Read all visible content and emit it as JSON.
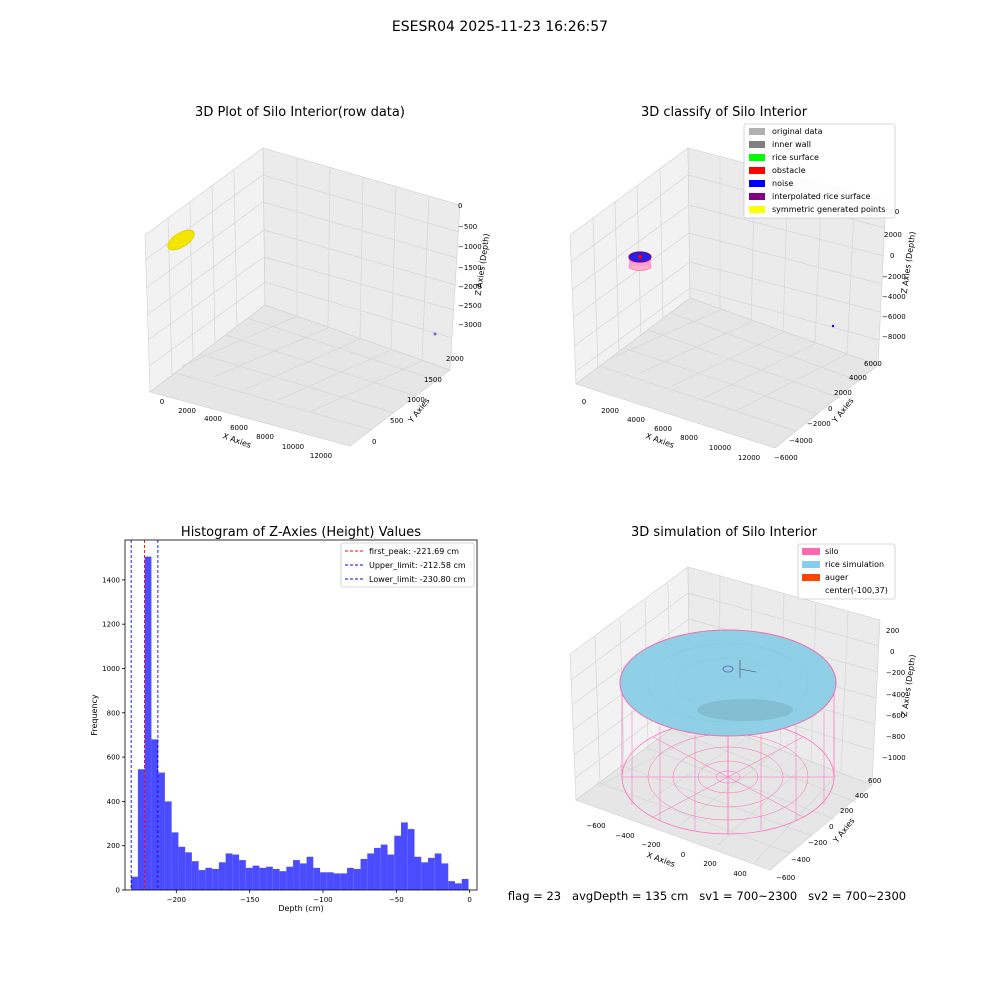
{
  "figure": {
    "suptitle": "ESESR04 2025-11-23 16:26:57",
    "footer": "flag = 23   avgDepth = 135 cm   sv1 = 700~2300   sv2 = 700~2300"
  },
  "colors": {
    "histogram_bar": "#4b4bff",
    "first_peak": "#ff0000",
    "limits": "#0000ff",
    "silo": "#ff69b4",
    "rice": "#87ceeb",
    "auger": "#ff4500",
    "pane": "#f2f2f2",
    "grid": "#d9d9d9",
    "raw_points": "#f2e600"
  },
  "panels": {
    "raw": {
      "title": "3D Plot of Silo Interior(row data)",
      "xlabel": "X Axies",
      "ylabel": "Y Axies",
      "zlabel": "Z Axies (Depth)",
      "xticks": [
        "0",
        "2000",
        "4000",
        "6000",
        "8000",
        "10000",
        "12000"
      ],
      "yticks": [
        "0",
        "500",
        "1000",
        "1500",
        "2000"
      ],
      "zticks": [
        "0",
        "−500",
        "−1000",
        "−1500",
        "−2000",
        "−2500",
        "−3000"
      ]
    },
    "classify": {
      "title": "3D classify of Silo Interior",
      "xlabel": "X Axies",
      "ylabel": "Y Axies",
      "zlabel": "Z Axies (Depth)",
      "xticks": [
        "0",
        "2000",
        "4000",
        "6000",
        "8000",
        "10000",
        "12000"
      ],
      "yticks": [
        "−6000",
        "−4000",
        "−2000",
        "0",
        "2000",
        "4000",
        "6000"
      ],
      "zticks": [
        "2000",
        "0",
        "−2000",
        "−4000",
        "−6000",
        "−8000"
      ],
      "ztick_partial": "000",
      "legend": [
        {
          "label": "original data",
          "color": "#b0b0b0"
        },
        {
          "label": "inner wall",
          "color": "#808080"
        },
        {
          "label": "rice surface",
          "color": "#00ff00"
        },
        {
          "label": "obstacle",
          "color": "#ff0000"
        },
        {
          "label": "noise",
          "color": "#0000ff"
        },
        {
          "label": "interpolated rice surface",
          "color": "#800080"
        },
        {
          "label": "symmetric generated points",
          "color": "#ffff00"
        }
      ]
    },
    "simulation": {
      "title": "3D simulation of Silo Interior",
      "xlabel": "X Axies",
      "ylabel": "Y Axies",
      "zlabel": "Z Axies (Depth)",
      "xticks": [
        "−600",
        "−400",
        "−200",
        "0",
        "200",
        "400"
      ],
      "yticks": [
        "−600",
        "−400",
        "−200",
        "0",
        "200",
        "400",
        "600"
      ],
      "zticks": [
        "200",
        "0",
        "−200",
        "−400",
        "−600",
        "−800",
        "−1000"
      ],
      "legend": [
        {
          "label": "silo",
          "color": "#ff69b4"
        },
        {
          "label": "rice simulation",
          "color": "#87ceeb"
        },
        {
          "label": "auger",
          "color": "#ff4500"
        },
        {
          "label": "center(-100,37)",
          "color": ""
        }
      ]
    }
  },
  "chart_data": {
    "type": "bar",
    "title": "Histogram of Z-Axies (Height) Values",
    "xlabel": "Depth (cm)",
    "ylabel": "Frequency",
    "xlim": [
      -235,
      5
    ],
    "ylim": [
      0,
      1580
    ],
    "xticks": [
      -200,
      -150,
      -100,
      -50,
      0
    ],
    "xtick_labels": [
      "−200",
      "−150",
      "−100",
      "−50",
      "0"
    ],
    "yticks": [
      0,
      200,
      400,
      600,
      800,
      1000,
      1200,
      1400
    ],
    "bin_start": -230.8,
    "bin_width": 4.6,
    "values": [
      60,
      545,
      1505,
      680,
      530,
      400,
      260,
      195,
      170,
      130,
      90,
      100,
      95,
      125,
      165,
      160,
      135,
      100,
      110,
      100,
      105,
      95,
      85,
      105,
      135,
      120,
      150,
      100,
      80,
      80,
      75,
      75,
      100,
      95,
      140,
      165,
      190,
      205,
      160,
      245,
      305,
      275,
      150,
      125,
      145,
      165,
      120,
      40,
      30,
      50
    ],
    "lines": [
      {
        "label": "first_peak: -221.69 cm",
        "x": -221.69,
        "color": "#ff0000"
      },
      {
        "label": "Upper_limit: -212.58 cm",
        "x": -212.58,
        "color": "#0000ff"
      },
      {
        "label": "Lower_limit: -230.80 cm",
        "x": -230.8,
        "color": "#0000ff"
      }
    ],
    "legend_position": "upper right"
  }
}
